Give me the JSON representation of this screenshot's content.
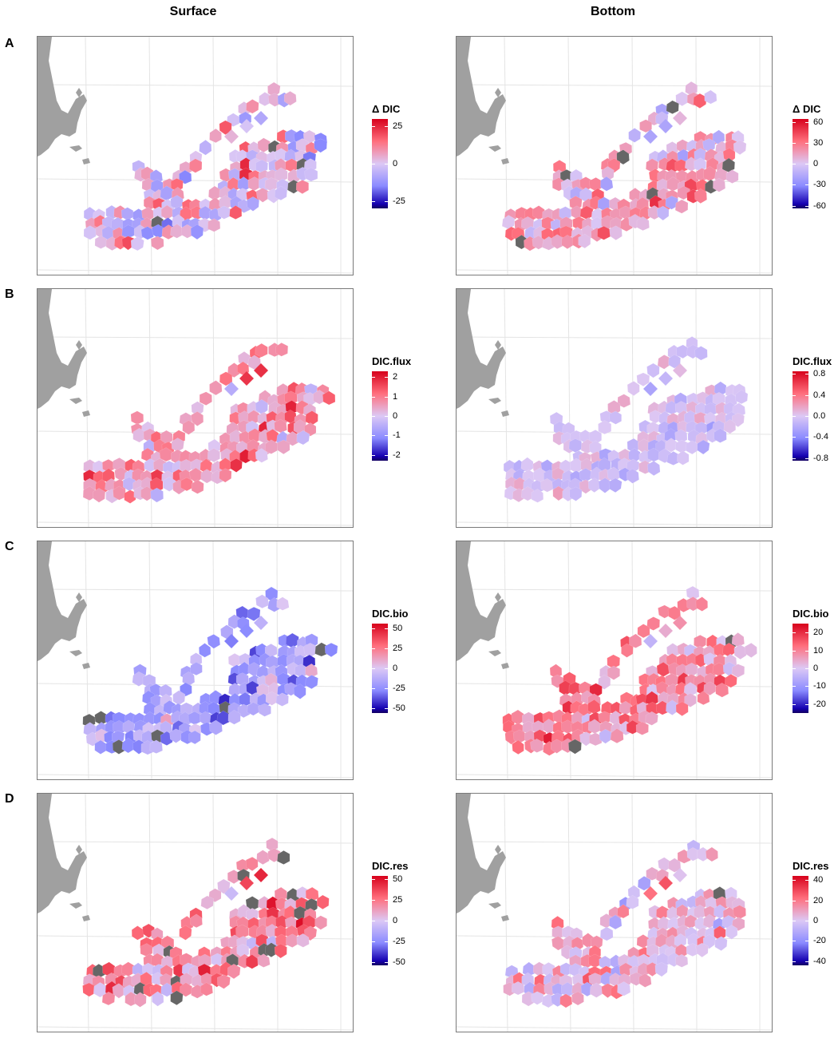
{
  "columns": [
    "Surface",
    "Bottom"
  ],
  "rows": [
    "A",
    "B",
    "C",
    "D"
  ],
  "colors": {
    "high": "#d7001b",
    "mid_high": "#ff6f7d",
    "zero": "#dcc8f5",
    "mid_low": "#8a8aff",
    "low": "#1500b0",
    "very_low": "#130060",
    "na": "#666666",
    "land": "#a0a0a0",
    "grid": "#e4e4e4"
  },
  "chart_data": [
    {
      "type": "heatmap",
      "row": "A",
      "column": "Surface",
      "legend_title": "Δ DIC",
      "ticks": [
        "25",
        "0",
        "-25"
      ],
      "tick_values": [
        25,
        0,
        -25
      ],
      "range": [
        -30,
        30
      ]
    },
    {
      "type": "heatmap",
      "row": "A",
      "column": "Bottom",
      "legend_title": "Δ DIC",
      "ticks": [
        "60",
        "30",
        "0",
        "-30",
        "-60"
      ],
      "tick_values": [
        60,
        30,
        0,
        -30,
        -60
      ],
      "range": [
        -64,
        64
      ]
    },
    {
      "type": "heatmap",
      "row": "B",
      "column": "Surface",
      "legend_title": "DIC.flux",
      "ticks": [
        "2",
        "1",
        "0",
        "-1",
        "-2"
      ],
      "tick_values": [
        2,
        1,
        0,
        -1,
        -2
      ],
      "range": [
        -2.3,
        2.3
      ]
    },
    {
      "type": "heatmap",
      "row": "B",
      "column": "Bottom",
      "legend_title": "DIC.flux",
      "ticks": [
        "0.8",
        "0.4",
        "0.0",
        "-0.4",
        "-0.8"
      ],
      "tick_values": [
        0.8,
        0.4,
        0,
        -0.4,
        -0.8
      ],
      "range": [
        -0.85,
        0.85
      ]
    },
    {
      "type": "heatmap",
      "row": "C",
      "column": "Surface",
      "legend_title": "DIC.bio",
      "ticks": [
        "50",
        "25",
        "0",
        "-25",
        "-50"
      ],
      "tick_values": [
        50,
        25,
        0,
        -25,
        -50
      ],
      "range": [
        -56,
        56
      ]
    },
    {
      "type": "heatmap",
      "row": "C",
      "column": "Bottom",
      "legend_title": "DIC.bio",
      "ticks": [
        "20",
        "10",
        "0",
        "-10",
        "-20"
      ],
      "tick_values": [
        20,
        10,
        0,
        -10,
        -20
      ],
      "range": [
        -25,
        25
      ]
    },
    {
      "type": "heatmap",
      "row": "D",
      "column": "Surface",
      "legend_title": "DIC.res",
      "ticks": [
        "50",
        "25",
        "0",
        "-25",
        "-50"
      ],
      "tick_values": [
        50,
        25,
        0,
        -25,
        -50
      ],
      "range": [
        -54,
        54
      ]
    },
    {
      "type": "heatmap",
      "row": "D",
      "column": "Bottom",
      "legend_title": "DIC.res",
      "ticks": [
        "40",
        "20",
        "0",
        "-20",
        "-40"
      ],
      "tick_values": [
        40,
        20,
        0,
        -20,
        -40
      ],
      "range": [
        -44,
        44
      ]
    }
  ]
}
